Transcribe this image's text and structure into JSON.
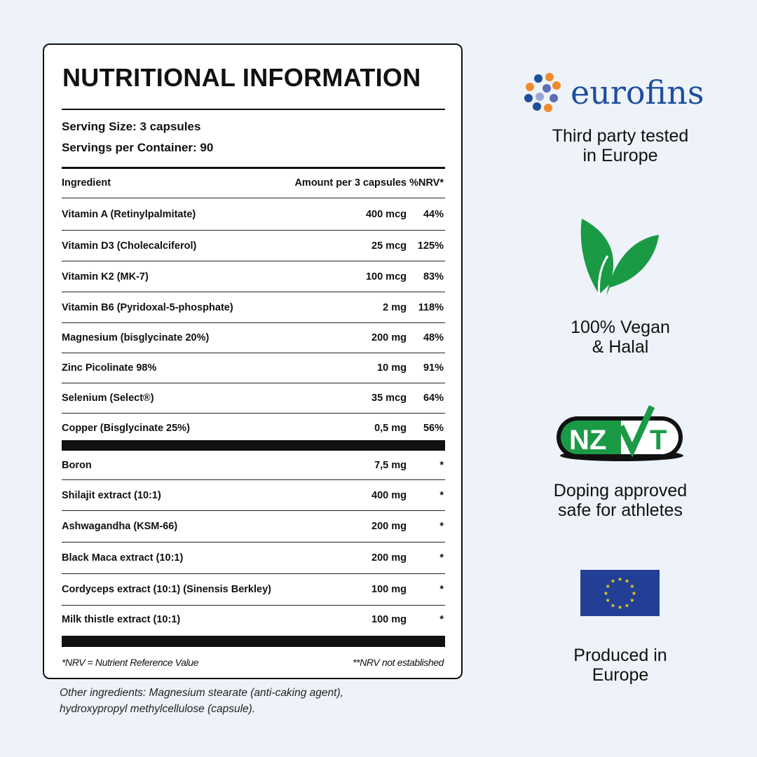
{
  "panel": {
    "title": "NUTRITIONAL INFORMATION",
    "serving_size": "Serving Size: 3 capsules",
    "servings_per_container": "Servings per Container: 90",
    "headers": {
      "ingredient": "Ingredient",
      "amount": "Amount per 3 capsules",
      "nrv": "%NRV*"
    },
    "vitamins": [
      {
        "ingredient": "Vitamin A (Retinylpalmitate)",
        "amount": "400 mcg",
        "nrv": "44%"
      },
      {
        "ingredient": "Vitamin D3 (Cholecalciferol)",
        "amount": "25 mcg",
        "nrv": "125%"
      },
      {
        "ingredient": "Vitamin K2 (MK-7)",
        "amount": "100 mcg",
        "nrv": "83%"
      },
      {
        "ingredient": "Vitamin B6 (Pyridoxal-5-phosphate)",
        "amount": "2 mg",
        "nrv": "118%"
      },
      {
        "ingredient": "Magnesium (bisglycinate 20%)",
        "amount": "200 mg",
        "nrv": "48%"
      },
      {
        "ingredient": "Zinc Picolinate 98%",
        "amount": "10 mg",
        "nrv": "91%"
      },
      {
        "ingredient": "Selenium (Select®)",
        "amount": "35 mcg",
        "nrv": "64%"
      },
      {
        "ingredient": "Copper (Bisglycinate 25%)",
        "amount": "0,5 mg",
        "nrv": "56%"
      }
    ],
    "extracts": [
      {
        "ingredient": "Boron",
        "amount": "7,5 mg",
        "nrv": "*"
      },
      {
        "ingredient": "Shilajit extract (10:1)",
        "amount": "400 mg",
        "nrv": "*"
      },
      {
        "ingredient": "Ashwagandha (KSM-66)",
        "amount": "200 mg",
        "nrv": "*"
      },
      {
        "ingredient": "Black Maca extract (10:1)",
        "amount": "200 mg",
        "nrv": "*"
      },
      {
        "ingredient": "Cordyceps extract (10:1) (Sinensis Berkley)",
        "amount": "100 mg",
        "nrv": "*"
      },
      {
        "ingredient": "Milk thistle extract (10:1)",
        "amount": "100 mg",
        "nrv": "*"
      }
    ],
    "footnote_left": "*NRV = Nutrient Reference Value",
    "footnote_right": "**NRV not established"
  },
  "other_ingredients": [
    "Other ingredients: Magnesium stearate (anti-caking agent),",
    "hydroxypropyl methylcellulose (capsule)."
  ],
  "badges": {
    "eurofins": {
      "logo": "eurofins",
      "line1": "Third party tested",
      "line2": "in Europe"
    },
    "vegan": {
      "icon": "leaf-icon",
      "line1": "100% Vegan",
      "line2": "& Halal"
    },
    "nzvt": {
      "logo": "NZVT",
      "line1": "Doping approved",
      "line2": "safe for athletes"
    },
    "eu": {
      "icon": "eu-flag-icon",
      "line1": "Produced in",
      "line2": "Europe"
    }
  },
  "colors": {
    "background": "#eef2f9",
    "eurofins_blue": "#1d4f9c",
    "eurofins_orange": "#f08a2c",
    "green": "#1a9a45",
    "eu_blue": "#233f95",
    "eu_gold": "#f7d617"
  }
}
